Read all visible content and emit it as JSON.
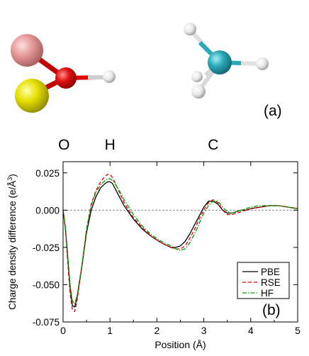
{
  "panel_labels": {
    "a": "(a)",
    "b": "(b)"
  },
  "molecule_colors": {
    "pink_atom": "#e89a9a",
    "yellow_atom": "#e6e000",
    "oxygen_atom": "#e01010",
    "hydrogen_atom": "#e8e8e8",
    "carbon_atom": "#2aa9b8",
    "bond_red": "#dd0000",
    "bond_white": "#dcdcdc"
  },
  "chart_data": {
    "type": "line",
    "xlabel": "Position (Å)",
    "ylabel": "Charge density difference (e/Å",
    "ylabel_sup": "3",
    "ylabel_tail": ")",
    "xlim": [
      0,
      5
    ],
    "ylim": [
      -0.075,
      0.0325
    ],
    "xticks": [
      0,
      1,
      2,
      3,
      4,
      5
    ],
    "xtick_labels": [
      "0",
      "1",
      "2",
      "3",
      "4",
      "5"
    ],
    "yticks": [
      -0.075,
      -0.05,
      -0.025,
      0.0,
      0.025
    ],
    "ytick_labels": [
      "-0.075",
      "-0.050",
      "-0.025",
      "0.000",
      "0.025"
    ],
    "reference_line": 0,
    "atom_labels": [
      {
        "text": "O",
        "x": 0.02
      },
      {
        "text": "H",
        "x": 1.0
      },
      {
        "text": "C",
        "x": 3.2
      }
    ],
    "legend_position": "bottom-right",
    "series": [
      {
        "name": "PBE",
        "color": "#000000",
        "dash": "solid",
        "x": [
          0,
          0.05,
          0.1,
          0.15,
          0.2,
          0.25,
          0.3,
          0.4,
          0.5,
          0.6,
          0.7,
          0.8,
          0.9,
          0.95,
          1.0,
          1.05,
          1.1,
          1.2,
          1.3,
          1.5,
          1.7,
          1.9,
          2.1,
          2.3,
          2.4,
          2.5,
          2.6,
          2.7,
          2.8,
          2.9,
          3.0,
          3.1,
          3.2,
          3.3,
          3.4,
          3.5,
          3.6,
          3.7,
          3.8,
          3.9,
          4.0,
          4.2,
          4.4,
          4.5,
          4.6,
          4.8,
          5.0
        ],
        "y": [
          0.0,
          -0.012,
          -0.032,
          -0.052,
          -0.064,
          -0.065,
          -0.058,
          -0.038,
          -0.015,
          0.0,
          0.009,
          0.015,
          0.018,
          0.019,
          0.019,
          0.018,
          0.015,
          0.009,
          0.003,
          -0.006,
          -0.013,
          -0.018,
          -0.022,
          -0.025,
          -0.025,
          -0.024,
          -0.021,
          -0.016,
          -0.01,
          -0.004,
          0.002,
          0.006,
          0.006,
          0.004,
          0.0,
          -0.002,
          -0.002,
          -0.001,
          0.0,
          0.0,
          0.001,
          0.002,
          0.003,
          0.003,
          0.003,
          0.002,
          0.001
        ]
      },
      {
        "name": "RSE",
        "color": "#e00000",
        "dash": "5,3",
        "x": [
          0,
          0.05,
          0.1,
          0.15,
          0.2,
          0.25,
          0.3,
          0.4,
          0.5,
          0.6,
          0.7,
          0.8,
          0.9,
          0.95,
          1.0,
          1.05,
          1.1,
          1.2,
          1.3,
          1.5,
          1.7,
          1.9,
          2.1,
          2.3,
          2.4,
          2.5,
          2.6,
          2.7,
          2.8,
          2.9,
          3.0,
          3.1,
          3.2,
          3.3,
          3.4,
          3.5,
          3.6,
          3.7,
          3.8,
          3.9,
          4.0,
          4.2,
          4.4,
          4.5,
          4.6,
          4.8,
          5.0
        ],
        "y": [
          0.0,
          -0.013,
          -0.035,
          -0.056,
          -0.067,
          -0.068,
          -0.06,
          -0.038,
          -0.013,
          0.004,
          0.013,
          0.019,
          0.023,
          0.024,
          0.024,
          0.022,
          0.019,
          0.012,
          0.005,
          -0.005,
          -0.012,
          -0.018,
          -0.022,
          -0.025,
          -0.026,
          -0.026,
          -0.024,
          -0.019,
          -0.013,
          -0.006,
          0.0,
          0.005,
          0.007,
          0.005,
          0.0,
          -0.003,
          -0.003,
          -0.002,
          -0.001,
          0.0,
          0.001,
          0.002,
          0.003,
          0.003,
          0.003,
          0.002,
          0.001
        ]
      },
      {
        "name": "HF",
        "color": "#00a000",
        "dash": "6,2,1.5,2",
        "x": [
          0,
          0.05,
          0.1,
          0.15,
          0.2,
          0.25,
          0.3,
          0.4,
          0.5,
          0.6,
          0.7,
          0.8,
          0.9,
          0.95,
          1.0,
          1.05,
          1.1,
          1.2,
          1.3,
          1.5,
          1.7,
          1.9,
          2.1,
          2.3,
          2.4,
          2.5,
          2.6,
          2.7,
          2.8,
          2.9,
          3.0,
          3.1,
          3.2,
          3.3,
          3.4,
          3.5,
          3.6,
          3.7,
          3.8,
          3.9,
          4.0,
          4.2,
          4.4,
          4.5,
          4.6,
          4.8,
          5.0
        ],
        "y": [
          0.0,
          -0.011,
          -0.03,
          -0.05,
          -0.061,
          -0.063,
          -0.057,
          -0.037,
          -0.013,
          0.003,
          0.012,
          0.017,
          0.02,
          0.021,
          0.021,
          0.02,
          0.018,
          0.013,
          0.007,
          -0.003,
          -0.011,
          -0.017,
          -0.021,
          -0.024,
          -0.026,
          -0.027,
          -0.026,
          -0.022,
          -0.016,
          -0.009,
          -0.002,
          0.003,
          0.006,
          0.006,
          0.002,
          -0.001,
          -0.002,
          -0.001,
          0.0,
          0.001,
          0.002,
          0.003,
          0.003,
          0.003,
          0.003,
          0.002,
          0.001
        ]
      }
    ]
  }
}
